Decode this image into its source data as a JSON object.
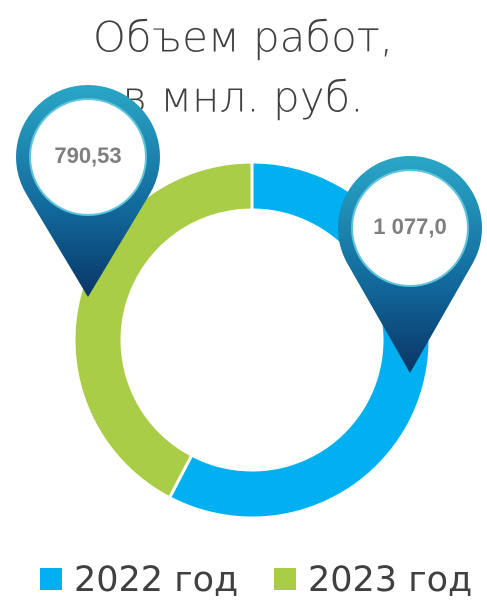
{
  "chart_data": {
    "type": "donut",
    "title": [
      "Объем работ,",
      "в мнл. руб."
    ],
    "series": [
      {
        "name": "2022 год",
        "color": "#00b0f0",
        "values": [
          1077.0
        ],
        "value_labels": [
          "1 077,0"
        ]
      },
      {
        "name": "2023 год",
        "color": "#a9cd46",
        "values": [
          790.53
        ],
        "value_labels": [
          "790,53"
        ]
      }
    ],
    "legend": "bottom"
  }
}
